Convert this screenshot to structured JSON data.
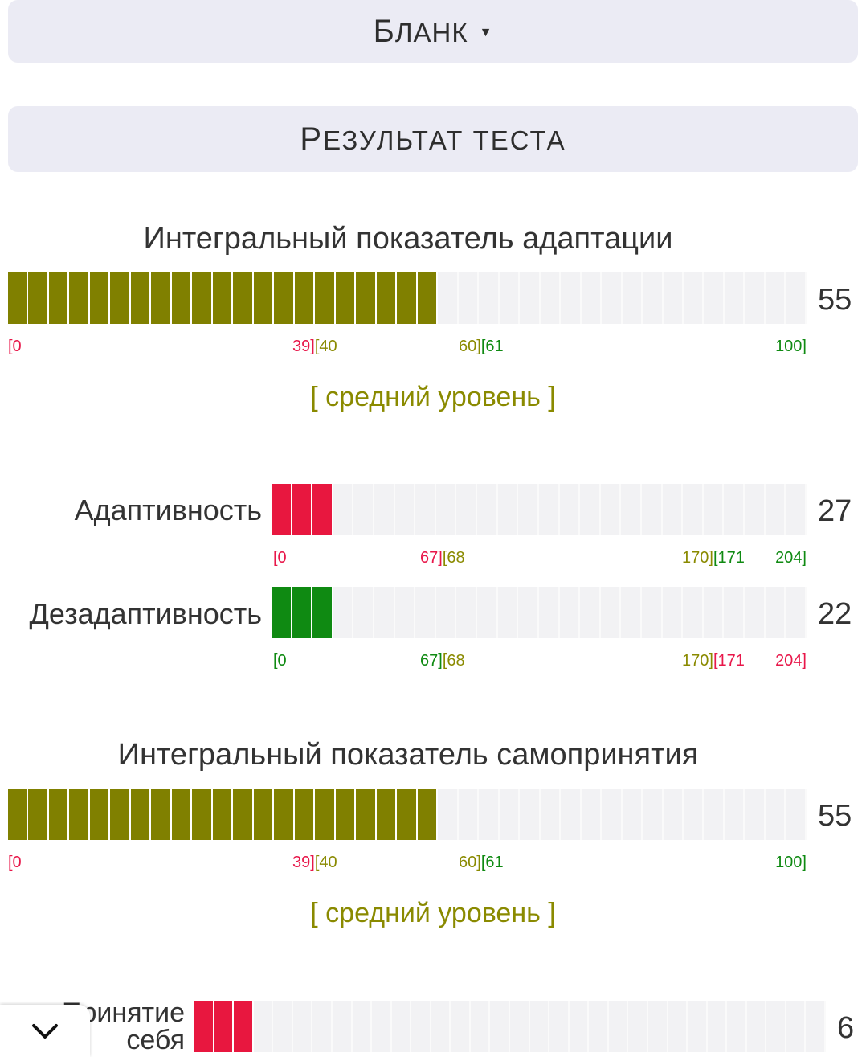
{
  "header": {
    "blank_label_first": "Б",
    "blank_label_rest": "ЛАНК",
    "blank_caret": "▼",
    "result_first": "Р",
    "result_rest": "ЕЗУЛЬТАТ ТЕСТА"
  },
  "sections": [
    {
      "title": "Интегральный показатель адаптации",
      "score": "55",
      "value": 55,
      "max": 100,
      "scale": [
        "[0",
        "39][40",
        "60][61",
        "100]"
      ],
      "level": "[ средний уровень ]"
    },
    {
      "title": "Интегральный показатель самопринятия",
      "score": "55",
      "value": 55,
      "max": 100,
      "scale": [
        "[0",
        "39][40",
        "60][61",
        "100]"
      ],
      "level": "[ средний уровень ]"
    }
  ],
  "subscales": [
    {
      "label": "Адаптивность",
      "score": "27",
      "value": 27,
      "max": 204,
      "scale": [
        "[0",
        "67][68",
        "170][171",
        "204]"
      ]
    },
    {
      "label": "Дезадаптивность",
      "score": "22",
      "value": 22,
      "max": 204,
      "scale": [
        "[0",
        "67][68",
        "170][171",
        "204]"
      ]
    }
  ],
  "partial_row": {
    "label_line1": "Принятие",
    "label_line2": "себя",
    "score": "6"
  },
  "icons": {
    "collapse": "chevron-down-icon"
  },
  "colors": {
    "olive": "#808000",
    "red": "#e8173f",
    "green": "#0f8a12",
    "empty": "#f2f2f4"
  }
}
